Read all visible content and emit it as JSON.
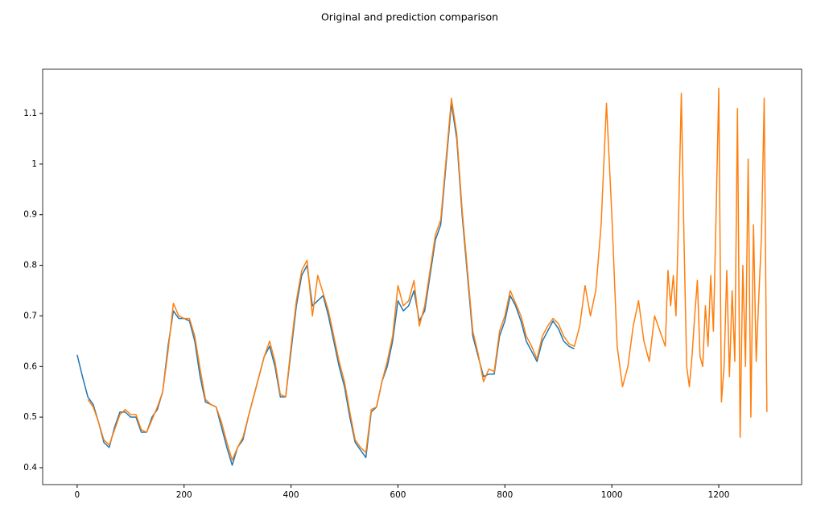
{
  "chart_data": {
    "type": "line",
    "title": "Original and prediction comparison",
    "x": [
      0,
      10,
      20,
      30,
      40,
      50,
      60,
      70,
      80,
      90,
      100,
      110,
      120,
      130,
      140,
      150,
      160,
      170,
      180,
      190,
      200,
      210,
      220,
      230,
      240,
      250,
      260,
      270,
      280,
      290,
      300,
      310,
      320,
      330,
      340,
      350,
      360,
      370,
      380,
      390,
      400,
      410,
      420,
      430,
      440,
      450,
      460,
      470,
      480,
      490,
      500,
      510,
      520,
      530,
      540,
      550,
      560,
      570,
      580,
      590,
      600,
      610,
      620,
      630,
      640,
      650,
      660,
      670,
      680,
      690,
      700,
      710,
      720,
      730,
      740,
      750,
      760,
      770,
      780,
      790,
      800,
      810,
      820,
      830,
      840,
      850,
      860,
      870,
      880,
      890,
      900,
      910,
      920,
      930,
      940,
      950,
      960,
      970,
      980,
      990,
      1000,
      1010,
      1020,
      1030,
      1040,
      1050,
      1060,
      1070,
      1080,
      1090,
      1100,
      1105,
      1110,
      1115,
      1120,
      1125,
      1130,
      1135,
      1140,
      1145,
      1150,
      1155,
      1160,
      1165,
      1170,
      1175,
      1180,
      1185,
      1190,
      1195,
      1200,
      1205,
      1210,
      1215,
      1220,
      1225,
      1230,
      1235,
      1240,
      1245,
      1250,
      1255,
      1260,
      1265,
      1270,
      1275,
      1280,
      1285,
      1290
    ],
    "series": [
      {
        "color": "#1f77b4",
        "values": [
          0.623,
          0.58,
          0.54,
          0.525,
          0.49,
          0.45,
          0.44,
          0.48,
          0.51,
          0.51,
          0.5,
          0.5,
          0.47,
          0.47,
          0.5,
          0.515,
          0.55,
          0.64,
          0.71,
          0.695,
          0.695,
          0.69,
          0.65,
          0.58,
          0.53,
          0.525,
          0.52,
          0.48,
          0.44,
          0.405,
          0.44,
          0.455,
          0.5,
          0.54,
          0.58,
          0.62,
          0.64,
          0.6,
          0.54,
          0.54,
          0.63,
          0.72,
          0.78,
          0.8,
          0.72,
          0.73,
          0.74,
          0.7,
          0.65,
          0.6,
          0.56,
          0.5,
          0.45,
          0.435,
          0.42,
          0.51,
          0.52,
          0.57,
          0.6,
          0.65,
          0.73,
          0.71,
          0.72,
          0.75,
          0.69,
          0.71,
          0.78,
          0.85,
          0.88,
          1.0,
          1.12,
          1.05,
          0.9,
          0.78,
          0.66,
          0.62,
          0.58,
          0.585,
          0.585,
          0.66,
          0.69,
          0.74,
          0.72,
          0.69,
          0.65,
          0.63,
          0.61,
          0.65,
          0.67,
          0.69,
          0.675,
          0.65,
          0.64,
          0.635,
          null,
          null,
          null,
          null,
          null,
          null,
          null,
          null,
          null,
          null,
          null,
          null,
          null,
          null,
          null,
          null,
          null,
          null,
          null,
          null,
          null,
          null,
          null,
          null,
          null,
          null,
          null,
          null,
          null,
          null,
          null,
          null,
          null,
          null,
          null,
          null,
          null,
          null,
          null,
          null,
          null,
          null,
          null,
          null,
          null,
          null,
          null,
          null,
          null,
          null,
          null,
          null,
          null,
          null,
          null
        ]
      },
      {
        "color": "#ff7f0e",
        "values": [
          null,
          null,
          0.535,
          0.52,
          0.49,
          0.455,
          0.445,
          0.475,
          0.505,
          0.515,
          0.505,
          0.505,
          0.475,
          0.47,
          0.495,
          0.52,
          0.55,
          0.63,
          0.725,
          0.7,
          0.695,
          0.695,
          0.66,
          0.595,
          0.535,
          0.525,
          0.52,
          0.49,
          0.45,
          0.415,
          0.44,
          0.46,
          0.5,
          0.54,
          0.58,
          0.62,
          0.65,
          0.61,
          0.545,
          0.54,
          0.64,
          0.73,
          0.79,
          0.81,
          0.7,
          0.78,
          0.745,
          0.71,
          0.66,
          0.61,
          0.57,
          0.51,
          0.455,
          0.44,
          0.43,
          0.515,
          0.52,
          0.57,
          0.61,
          0.66,
          0.76,
          0.72,
          0.73,
          0.77,
          0.68,
          0.72,
          0.79,
          0.86,
          0.89,
          1.01,
          1.13,
          1.06,
          0.91,
          0.79,
          0.67,
          0.625,
          0.57,
          0.595,
          0.59,
          0.67,
          0.7,
          0.75,
          0.725,
          0.7,
          0.66,
          0.64,
          0.615,
          0.66,
          0.68,
          0.695,
          0.685,
          0.66,
          0.645,
          0.64,
          0.68,
          0.76,
          0.7,
          0.75,
          0.88,
          1.12,
          0.9,
          0.64,
          0.56,
          0.6,
          0.68,
          0.73,
          0.65,
          0.61,
          0.7,
          0.67,
          0.64,
          0.79,
          0.72,
          0.78,
          0.7,
          0.9,
          1.14,
          0.85,
          0.6,
          0.56,
          0.62,
          0.7,
          0.77,
          0.62,
          0.6,
          0.72,
          0.64,
          0.78,
          0.67,
          0.9,
          1.15,
          0.53,
          0.6,
          0.79,
          0.58,
          0.75,
          0.61,
          1.11,
          0.46,
          0.8,
          0.6,
          1.01,
          0.5,
          0.88,
          0.61,
          0.74,
          0.86,
          1.13,
          0.51
        ]
      }
    ],
    "xlim": [
      -64.5,
      1355
    ],
    "ylim": [
      0.3666,
      1.1875
    ],
    "xticks": [
      0,
      200,
      400,
      600,
      800,
      1000,
      1200
    ],
    "yticks": [
      0.4,
      0.5,
      0.6,
      0.7,
      0.8,
      0.9,
      1.0,
      1.1
    ]
  }
}
